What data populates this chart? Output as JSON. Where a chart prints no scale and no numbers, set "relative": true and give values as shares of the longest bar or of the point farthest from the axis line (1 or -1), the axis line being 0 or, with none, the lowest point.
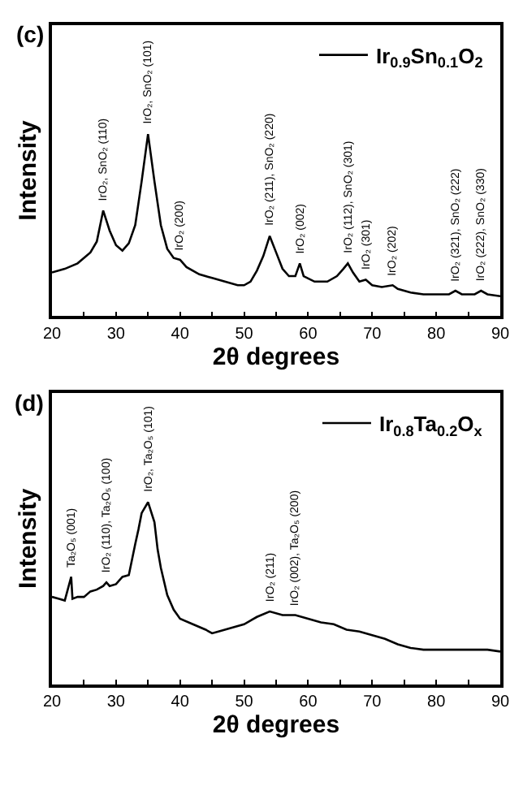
{
  "chart_data": [
    {
      "type": "line",
      "title": "(c)",
      "xlabel": "2θ degrees",
      "ylabel": "Intensity",
      "relative": true,
      "xlim": [
        20,
        90
      ],
      "xticks": [
        20,
        {
          "value": 25,
          "label": null
        },
        30,
        {
          "value": 35,
          "label": null
        },
        40,
        {
          "value": 45,
          "label": null
        },
        50,
        {
          "value": 55,
          "label": null
        },
        60,
        {
          "value": 65,
          "label": null
        },
        70,
        {
          "value": 75,
          "label": null
        },
        80,
        {
          "value": 85,
          "label": null
        },
        90
      ],
      "tick_labels": "x",
      "legend": "top right",
      "x": [
        20,
        22,
        24,
        26,
        27,
        28,
        29,
        30,
        31,
        32,
        33,
        34,
        35,
        36,
        37,
        38,
        39,
        40,
        41,
        43,
        45,
        47,
        49,
        50,
        51,
        52,
        53,
        54,
        55,
        56,
        57,
        58,
        58.7,
        59.3,
        61,
        63,
        64.5,
        65.5,
        66.2,
        67,
        68,
        69,
        70,
        71.5,
        73.2,
        74,
        76,
        78,
        80,
        82,
        83,
        84,
        86,
        87,
        88,
        90
      ],
      "series": [
        {
          "name": "Ir$_{0.9}$Sn$_{0.1}$O$_{2}$",
          "color": "#000000",
          "values": [
            0.24,
            0.26,
            0.29,
            0.35,
            0.41,
            0.58,
            0.47,
            0.39,
            0.36,
            0.4,
            0.5,
            0.74,
            1.0,
            0.74,
            0.5,
            0.37,
            0.32,
            0.31,
            0.27,
            0.23,
            0.21,
            0.19,
            0.17,
            0.17,
            0.19,
            0.25,
            0.33,
            0.44,
            0.35,
            0.26,
            0.22,
            0.22,
            0.29,
            0.22,
            0.19,
            0.19,
            0.22,
            0.26,
            0.29,
            0.24,
            0.19,
            0.2,
            0.17,
            0.16,
            0.17,
            0.15,
            0.13,
            0.12,
            0.12,
            0.12,
            0.14,
            0.12,
            0.12,
            0.14,
            0.12,
            0.11
          ]
        }
      ],
      "annotations": [
        {
          "text": "IrO₂, SnO₂ (110)",
          "x": 28,
          "y": 0.58
        },
        {
          "text": "IrO₂, SnO₂ (101)",
          "x": 35,
          "y": 1.0
        },
        {
          "text": "IrO₂ (200)",
          "x": 40,
          "y": 0.31
        },
        {
          "text": "IrO₂ (211), SnO₂ (220)",
          "x": 54,
          "y": 0.44
        },
        {
          "text": "IrO₂ (002)",
          "x": 58.7,
          "y": 0.29
        },
        {
          "text": "IrO₂ (112), SnO₂ (301)",
          "x": 66.2,
          "y": 0.29
        },
        {
          "text": "IrO₂ (301)",
          "x": 69,
          "y": 0.2
        },
        {
          "text": "IrO₂ (202)",
          "x": 73.2,
          "y": 0.17
        },
        {
          "text": "IrO₂ (321), SnO₂ (222)",
          "x": 83,
          "y": 0.14
        },
        {
          "text": "IrO₂ (222), SnO₂ (330)",
          "x": 87,
          "y": 0.14
        }
      ]
    },
    {
      "type": "line",
      "title": "(d)",
      "xlabel": "2θ degrees",
      "ylabel": "Intensity",
      "relative": true,
      "xlim": [
        20,
        90
      ],
      "xticks": [
        20,
        {
          "value": 25,
          "label": null
        },
        30,
        {
          "value": 35,
          "label": null
        },
        40,
        {
          "value": 45,
          "label": null
        },
        50,
        {
          "value": 55,
          "label": null
        },
        60,
        {
          "value": 65,
          "label": null
        },
        70,
        {
          "value": 75,
          "label": null
        },
        80,
        {
          "value": 85,
          "label": null
        },
        90
      ],
      "tick_labels": "x",
      "legend": "top right",
      "x": [
        20,
        21,
        22,
        23,
        23.2,
        24,
        25,
        26,
        27,
        28,
        28.5,
        29,
        30,
        31,
        32,
        33,
        33.5,
        34,
        35,
        36,
        36.5,
        37,
        38,
        39,
        40,
        42,
        44,
        45,
        46,
        48,
        50,
        52,
        54,
        56,
        58,
        60,
        62,
        64,
        66,
        68,
        70,
        72,
        74,
        76,
        78,
        80,
        84,
        88,
        90
      ],
      "series": [
        {
          "name": "Ir$_{0.8}$Ta$_{0.2}$O$_{x}$",
          "color": "#000000",
          "values": [
            0.48,
            0.47,
            0.46,
            0.59,
            0.47,
            0.48,
            0.48,
            0.51,
            0.52,
            0.54,
            0.56,
            0.54,
            0.55,
            0.59,
            0.6,
            0.77,
            0.85,
            0.94,
            1.0,
            0.89,
            0.74,
            0.64,
            0.49,
            0.41,
            0.36,
            0.33,
            0.3,
            0.28,
            0.29,
            0.31,
            0.33,
            0.37,
            0.4,
            0.38,
            0.38,
            0.36,
            0.34,
            0.33,
            0.3,
            0.29,
            0.27,
            0.25,
            0.22,
            0.2,
            0.19,
            0.19,
            0.19,
            0.19,
            0.18
          ]
        }
      ],
      "annotations": [
        {
          "text": "Ta₂O₅ (001)",
          "x": 23,
          "y": 0.59
        },
        {
          "text": "IrO₂ (110), Ta₂O₅ (100)",
          "x": 28.5,
          "y": 0.56
        },
        {
          "text": "IrO₂, Ta₂O₅ (101)",
          "x": 35,
          "y": 1.0
        },
        {
          "text": "IrO₂ (211)",
          "x": 54,
          "y": 0.4
        },
        {
          "text": "IrO₂ (002), Ta₂O₅ (200)",
          "x": 58,
          "y": 0.38
        }
      ]
    }
  ]
}
